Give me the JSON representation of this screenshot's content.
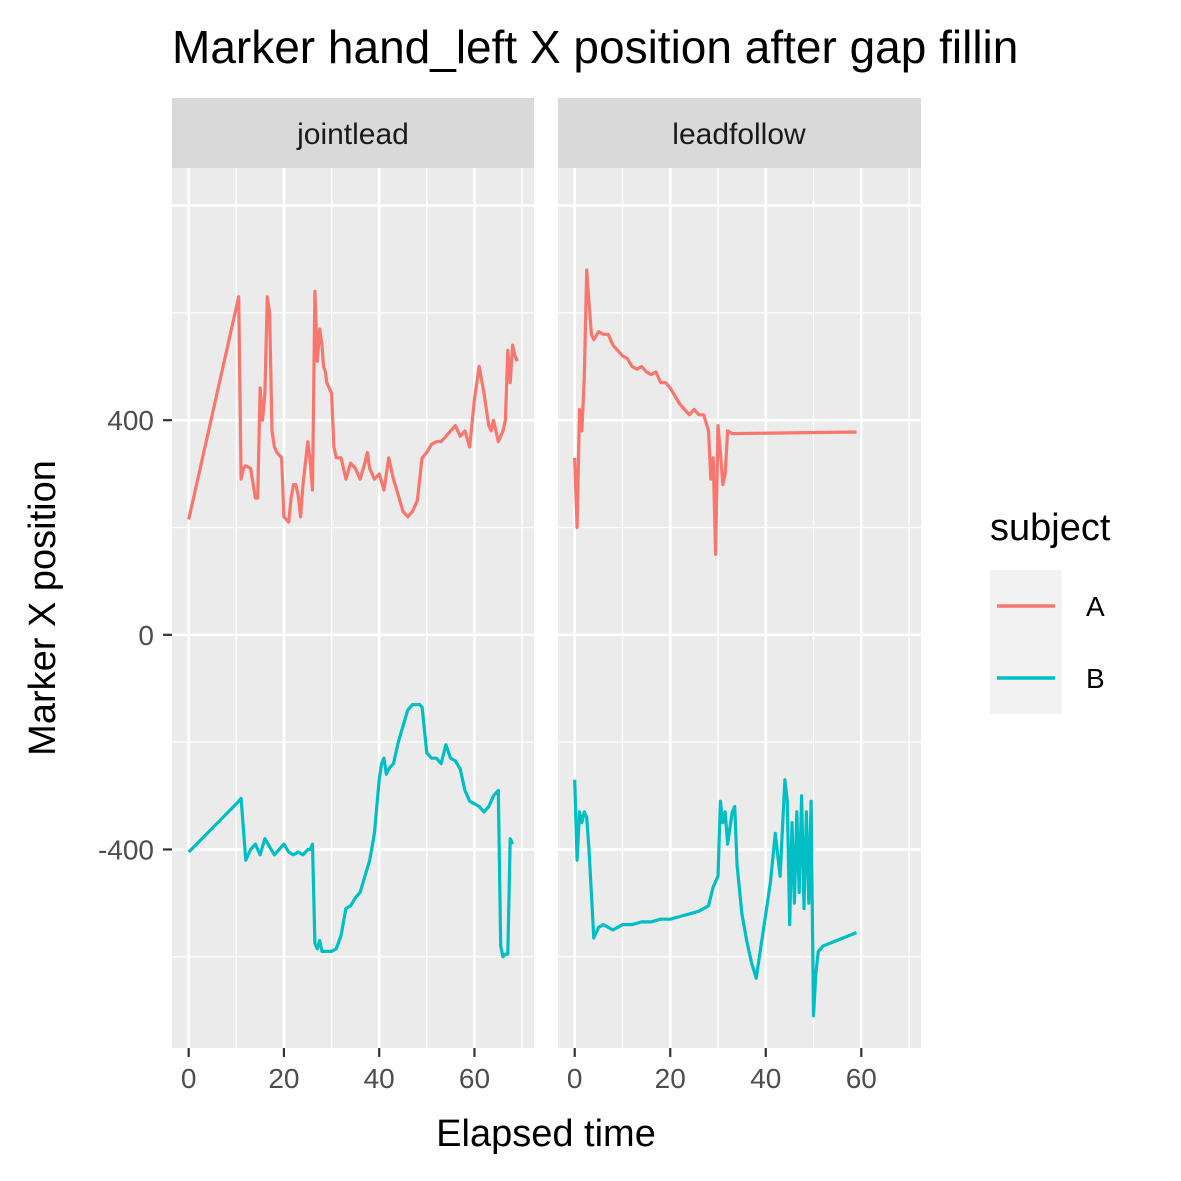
{
  "chart_data": {
    "type": "line",
    "title": "Marker hand_left X position after gap fillin",
    "xlabel": "Elapsed time",
    "ylabel": "Marker X position",
    "xlim": [
      -3.5,
      72.5
    ],
    "ylim": [
      -770,
      870
    ],
    "x_ticks": [
      0,
      20,
      40,
      60
    ],
    "y_ticks": [
      400,
      0,
      -400
    ],
    "grid": true,
    "legend": {
      "title": "subject",
      "position": "right",
      "entries": [
        {
          "label": "A",
          "color": "#F8766D"
        },
        {
          "label": "B",
          "color": "#00BFC4"
        }
      ]
    },
    "facets": [
      {
        "label": "jointlead",
        "series": [
          {
            "name": "A",
            "color": "#F8766D",
            "x": [
              0,
              10.5,
              11,
              11.5,
              12,
              13,
              14,
              14.5,
              15,
              15.5,
              16,
              16.5,
              17,
              17.5,
              18,
              18.5,
              19,
              19.5,
              20,
              21,
              21.5,
              22,
              22.5,
              23,
              23.5,
              24,
              25,
              25.5,
              26,
              26.5,
              27,
              27.5,
              28,
              28.3,
              28.7,
              29,
              29.5,
              30,
              30.5,
              31,
              32,
              33,
              34,
              35,
              36,
              37,
              37.5,
              38,
              38.5,
              39,
              40,
              41,
              42,
              43,
              44,
              45,
              46,
              47,
              48,
              49,
              50,
              51,
              52,
              53,
              54,
              55,
              56,
              57,
              58,
              59,
              60,
              61,
              62,
              63,
              63.5,
              64,
              64.5,
              65,
              66,
              66.5,
              67,
              67.5,
              68,
              68.5,
              69
            ],
            "y": [
              215,
              630,
              290,
              310,
              315,
              310,
              255,
              255,
              460,
              400,
              450,
              630,
              600,
              380,
              350,
              340,
              335,
              330,
              220,
              210,
              255,
              280,
              280,
              260,
              220,
              280,
              360,
              325,
              270,
              640,
              510,
              570,
              540,
              500,
              490,
              470,
              460,
              450,
              350,
              330,
              330,
              290,
              320,
              310,
              290,
              320,
              340,
              310,
              300,
              290,
              300,
              270,
              330,
              290,
              260,
              230,
              220,
              230,
              250,
              330,
              340,
              355,
              360,
              360,
              370,
              380,
              390,
              370,
              380,
              350,
              440,
              500,
              450,
              390,
              380,
              400,
              380,
              360,
              380,
              400,
              530,
              470,
              540,
              520,
              510
            ]
          },
          {
            "name": "B",
            "color": "#00BFC4",
            "x": [
              0,
              10,
              11,
              12,
              13,
              14,
              15,
              16,
              17,
              18,
              19,
              20,
              21,
              22,
              23,
              24,
              25,
              25.5,
              26,
              26.5,
              27,
              27.5,
              28,
              29,
              30,
              31,
              32,
              33,
              34,
              35,
              36,
              37,
              38,
              39,
              40,
              40.5,
              41,
              41.5,
              42,
              43,
              44,
              45,
              46,
              47,
              48,
              48.5,
              49,
              50,
              51,
              52,
              53,
              54,
              55,
              56,
              57,
              58,
              59,
              60,
              61,
              62,
              63,
              64,
              65,
              65.5,
              66,
              66.5,
              67,
              67.5,
              68
            ],
            "y": [
              -405,
              -315,
              -305,
              -420,
              -400,
              -390,
              -410,
              -380,
              -395,
              -410,
              -400,
              -390,
              -405,
              -410,
              -405,
              -410,
              -400,
              -400,
              -390,
              -575,
              -585,
              -570,
              -590,
              -590,
              -590,
              -585,
              -560,
              -510,
              -505,
              -490,
              -480,
              -450,
              -420,
              -370,
              -270,
              -240,
              -230,
              -260,
              -250,
              -240,
              -200,
              -170,
              -140,
              -130,
              -130,
              -130,
              -135,
              -220,
              -230,
              -230,
              -240,
              -205,
              -230,
              -235,
              -250,
              -290,
              -310,
              -315,
              -320,
              -330,
              -320,
              -300,
              -290,
              -580,
              -600,
              -595,
              -595,
              -380,
              -390
            ]
          }
        ]
      },
      {
        "label": "leadfollow",
        "series": [
          {
            "name": "A",
            "color": "#F8766D",
            "x": [
              0,
              0.5,
              1,
              1.5,
              2,
              2.5,
              3,
              3.5,
              4,
              5,
              6,
              7,
              8,
              9,
              10,
              11,
              12,
              13,
              14,
              15,
              16,
              17,
              18,
              19,
              20,
              21,
              22,
              23,
              24,
              25,
              26,
              27,
              28,
              28.5,
              29,
              29.5,
              30,
              30.5,
              31,
              31.5,
              32,
              33,
              59
            ],
            "y": [
              330,
              200,
              420,
              380,
              480,
              680,
              620,
              560,
              550,
              565,
              560,
              560,
              540,
              530,
              520,
              515,
              500,
              495,
              500,
              490,
              485,
              490,
              470,
              470,
              460,
              445,
              430,
              420,
              410,
              420,
              410,
              410,
              380,
              290,
              330,
              150,
              390,
              340,
              280,
              300,
              380,
              375,
              378
            ]
          },
          {
            "name": "B",
            "color": "#00BFC4",
            "x": [
              0,
              0.5,
              1,
              1.5,
              2,
              2.5,
              3,
              4,
              5,
              6,
              7,
              8,
              9,
              10,
              12,
              14,
              16,
              18,
              20,
              22,
              24,
              26,
              28,
              29,
              30,
              30.5,
              31,
              31.5,
              32,
              32.5,
              33,
              33.5,
              34,
              35,
              36,
              37,
              38,
              39,
              40,
              41,
              42,
              43,
              44,
              44.5,
              45,
              45.5,
              46,
              46.5,
              47,
              47.5,
              48,
              48.5,
              49,
              49.5,
              50,
              50.5,
              51,
              52,
              59
            ],
            "y": [
              -270,
              -420,
              -330,
              -350,
              -330,
              -340,
              -400,
              -565,
              -545,
              -540,
              -545,
              -550,
              -545,
              -540,
              -540,
              -535,
              -535,
              -530,
              -530,
              -525,
              -520,
              -515,
              -505,
              -470,
              -450,
              -310,
              -350,
              -330,
              -390,
              -360,
              -330,
              -320,
              -430,
              -520,
              -570,
              -610,
              -640,
              -580,
              -520,
              -460,
              -370,
              -450,
              -270,
              -310,
              -540,
              -350,
              -500,
              -330,
              -480,
              -300,
              -510,
              -330,
              -500,
              -310,
              -710,
              -630,
              -590,
              -580,
              -555
            ]
          }
        ]
      }
    ]
  }
}
